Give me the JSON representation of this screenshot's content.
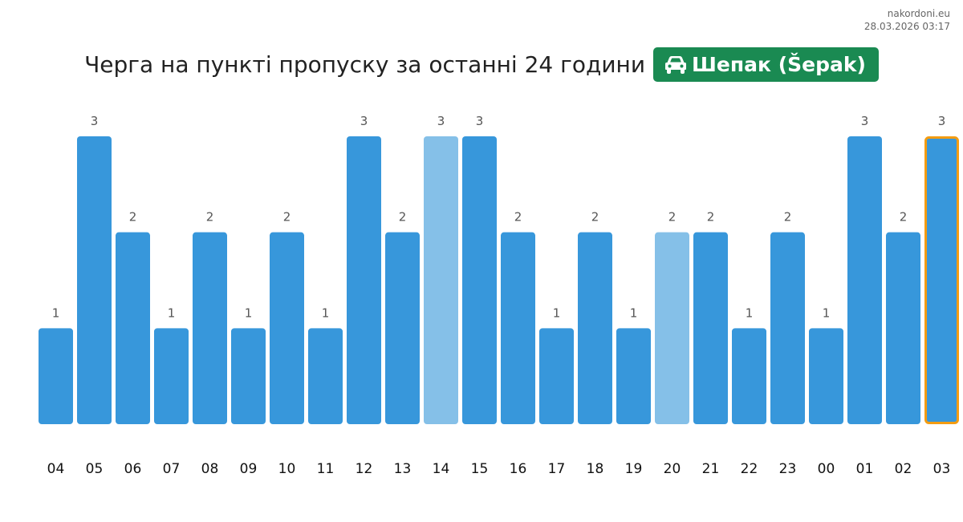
{
  "site": "nakordoni.eu",
  "timestamp": "28.03.2026 03:17",
  "title": "Черга на пункті пропуску за останні 24 години",
  "checkpoint": {
    "name": "Шепак (Šepak)",
    "icon": "car-icon",
    "badge_color": "#1a8a52"
  },
  "colors": {
    "bar": "#3797db",
    "bar_light": "#85c0e8",
    "highlight_border": "#f39c12"
  },
  "chart_data": {
    "type": "bar",
    "categories": [
      "04",
      "05",
      "06",
      "07",
      "08",
      "09",
      "10",
      "11",
      "12",
      "13",
      "14",
      "15",
      "16",
      "17",
      "18",
      "19",
      "20",
      "21",
      "22",
      "23",
      "00",
      "01",
      "02",
      "03"
    ],
    "values": [
      1,
      3,
      2,
      1,
      2,
      1,
      2,
      1,
      3,
      2,
      3,
      3,
      2,
      1,
      2,
      1,
      2,
      2,
      1,
      2,
      1,
      3,
      2,
      3
    ],
    "light_bars": [
      "14",
      "20"
    ],
    "highlighted": "03",
    "ylim": [
      0,
      3
    ],
    "grid": false,
    "xlabel": "",
    "ylabel": ""
  }
}
